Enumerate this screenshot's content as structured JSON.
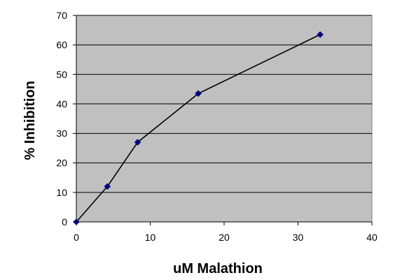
{
  "chart_data": {
    "type": "line",
    "title": "",
    "xlabel": "uM Malathion",
    "ylabel": "% Inhibition",
    "xlim": [
      0,
      40
    ],
    "ylim": [
      0,
      70
    ],
    "x_ticks": [
      0,
      10,
      20,
      30,
      40
    ],
    "y_ticks": [
      0,
      10,
      20,
      30,
      40,
      50,
      60,
      70
    ],
    "grid": {
      "horizontal": true,
      "vertical": false
    },
    "legend": "none",
    "series": [
      {
        "x": [
          0,
          4.2,
          8.3,
          16.5,
          33
        ],
        "y": [
          0,
          12,
          27,
          43.5,
          63.5
        ],
        "marker": "diamond"
      }
    ]
  },
  "colors": {
    "plot_background": "#c0c0c0",
    "gridline": "#000000",
    "line": "#000000",
    "marker": "#000080"
  }
}
